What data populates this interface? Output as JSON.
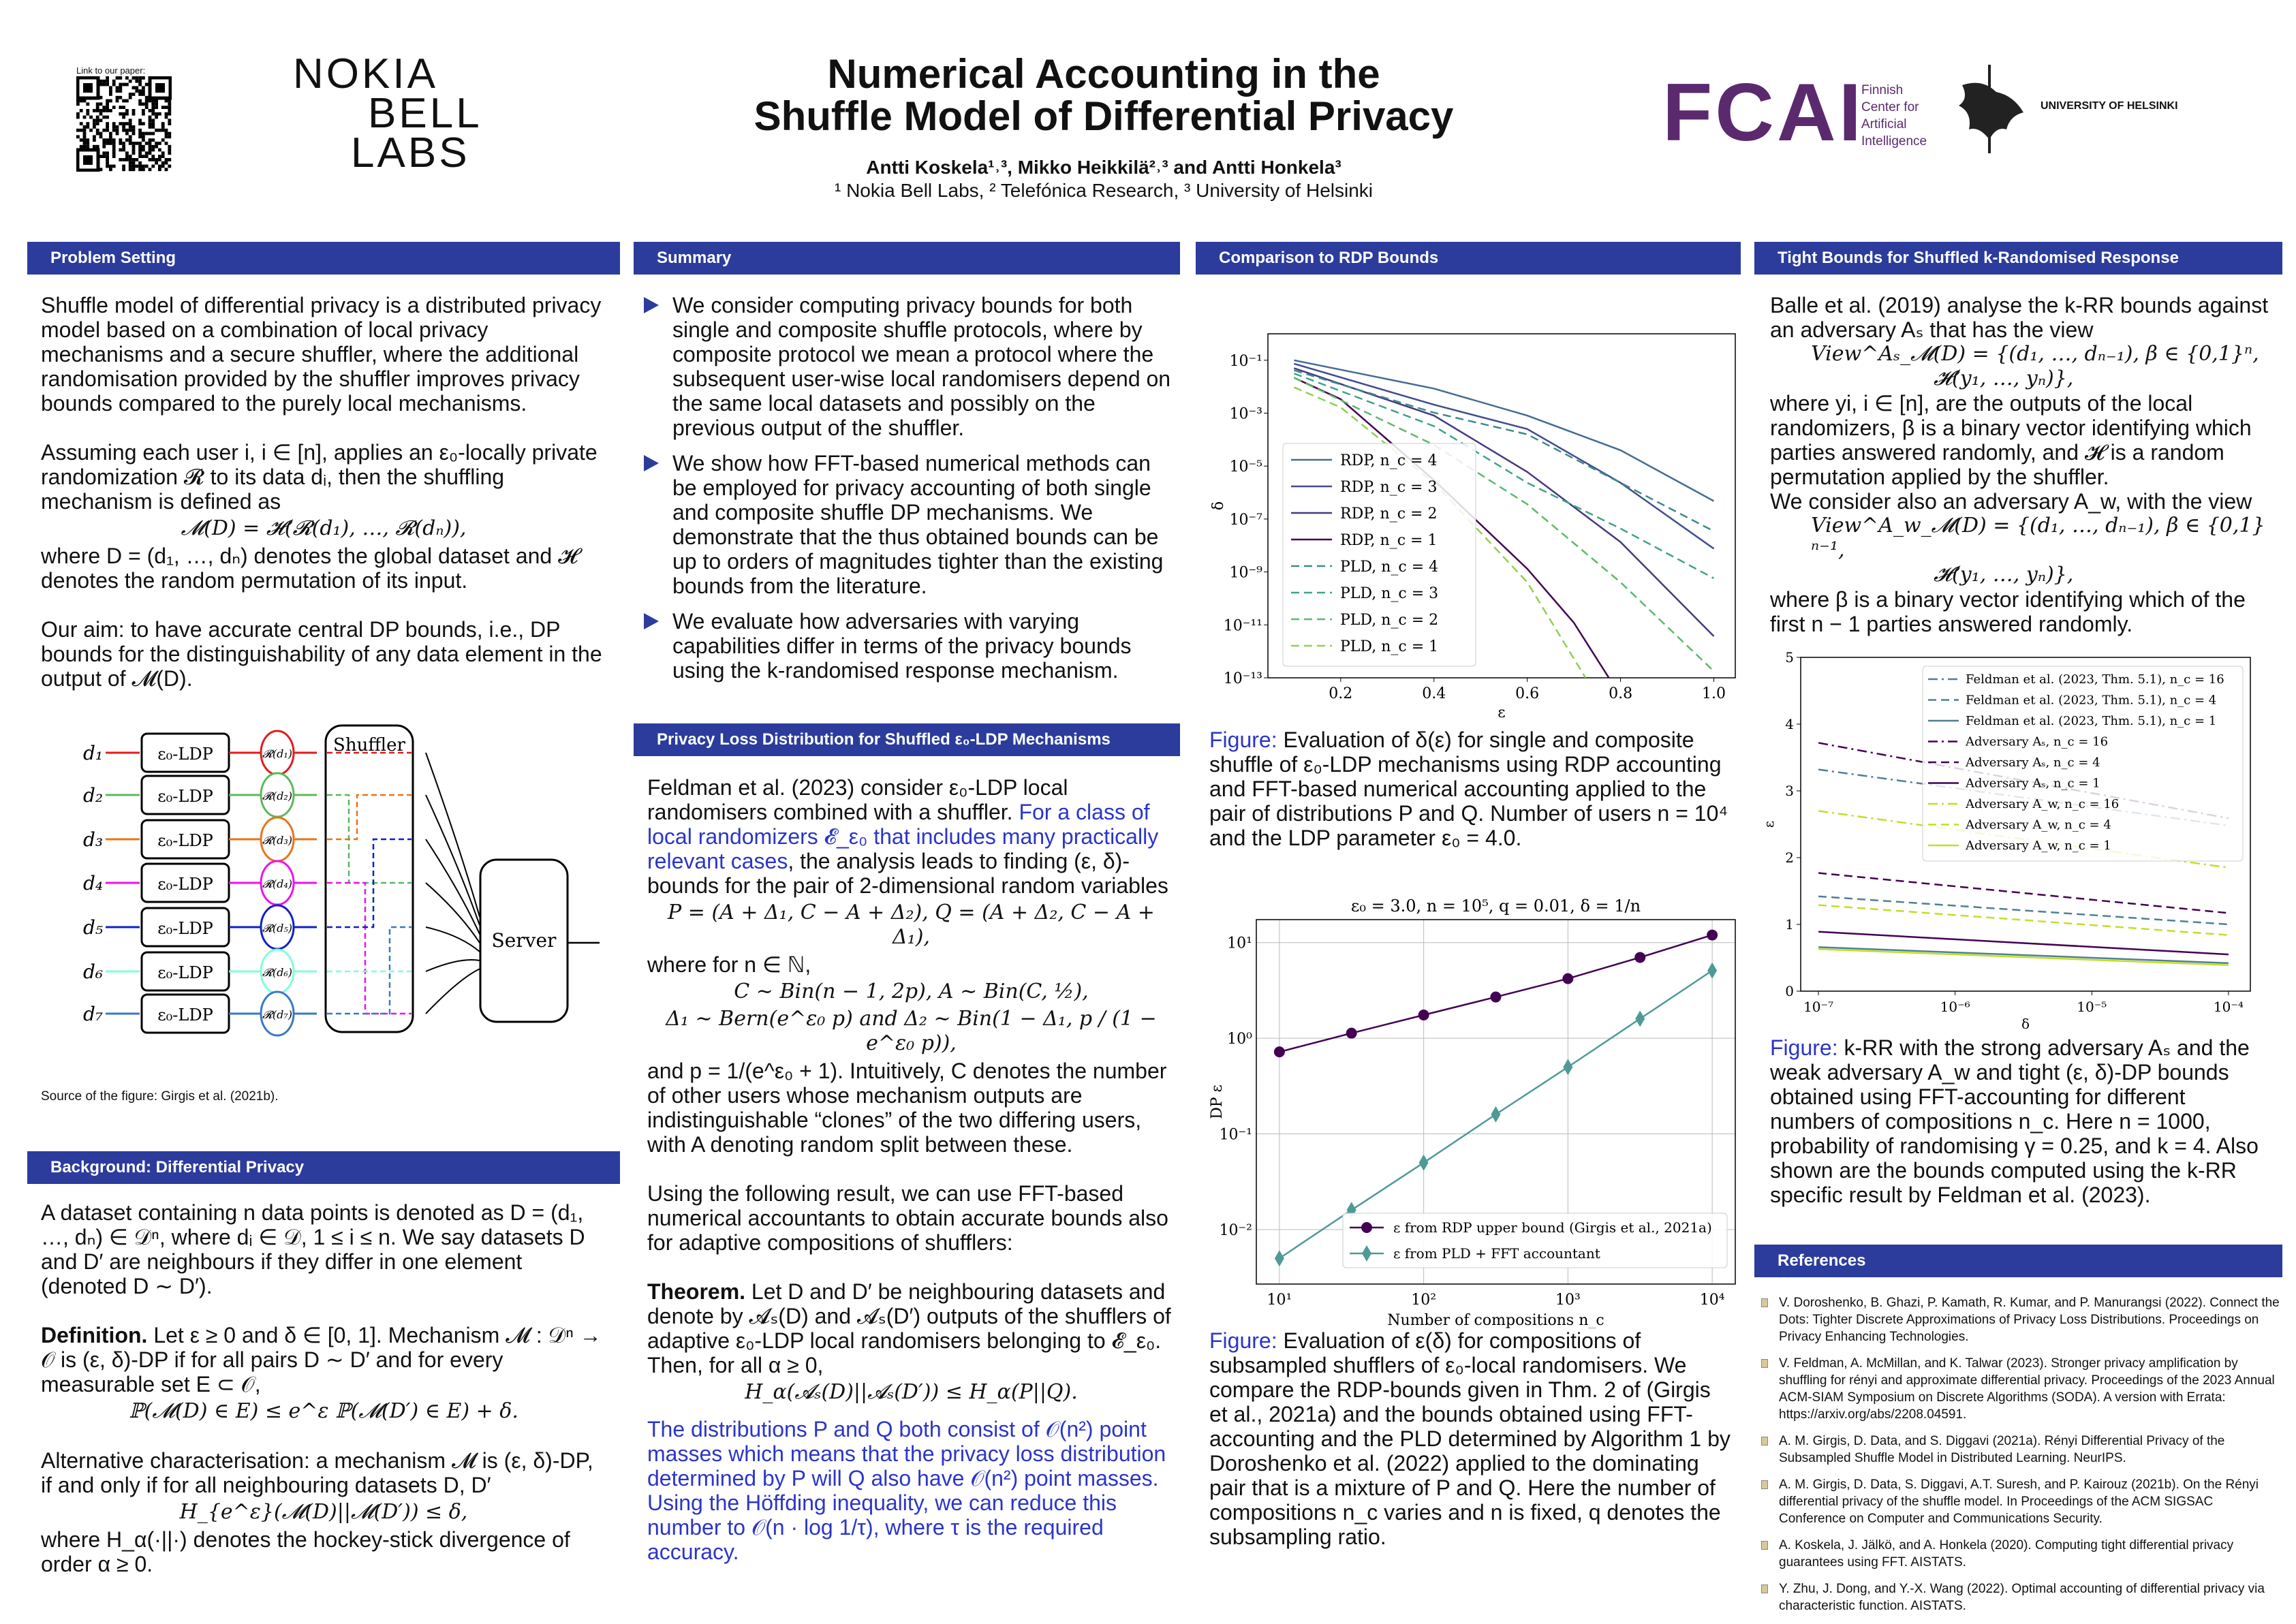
{
  "header": {
    "qr_label": "Link to our paper:",
    "nokia_logo": [
      "NOKIA",
      "BELL",
      "LABS"
    ],
    "title_lines": [
      "Numerical Accounting in the",
      "Shuffle Model of Differential Privacy"
    ],
    "authors": "Antti Koskela¹˒³, Mikko Heikkilä²˒³ and Antti Honkela³",
    "affiliations": "¹ Nokia Bell Labs, ² Telefónica Research, ³ University of Helsinki",
    "fcai_logo": "FCAI",
    "fcai_sub": [
      "Finnish",
      "Center for",
      "Artificial",
      "Intelligence"
    ],
    "uh_logo": "UNIVERSITY OF HELSINKI",
    "colors": {
      "header_bar": "#2c3c9c",
      "fcai": "#5b2a6e",
      "link_blue": "#2b35c8"
    }
  },
  "problem": {
    "heading": "Problem Setting",
    "p1": "Shuffle model of differential privacy is a distributed privacy model based on a combination of local privacy mechanisms and a secure shuffler, where the additional randomisation provided by the shuffler improves privacy bounds compared to the purely local mechanisms.",
    "p2": "Assuming each user i, i ∈ [n], applies an ε₀-locally private randomization 𝓡 to its data dᵢ, then the shuffling mechanism is defined as",
    "eq": "𝓜(D) = 𝓗(𝓡(d₁), …, 𝓡(dₙ)),",
    "p3": "where D = (d₁, …, dₙ) denotes the global dataset and 𝓗 denotes the random permutation of its input.",
    "p4": "Our aim: to have accurate central DP bounds, i.e., DP bounds for the distinguishability of any data element in the output of 𝓜(D).",
    "figure": {
      "shuffler": "Shuffler",
      "server": "Server",
      "box": "ε₀-LDP",
      "inputs": [
        "d₁",
        "d₂",
        "d₃",
        "d₄",
        "d₅",
        "d₆",
        "d₇"
      ],
      "outputs": [
        "𝓡(d₁)",
        "𝓡(d₂)",
        "𝓡(d₃)",
        "𝓡(d₄)",
        "𝓡(d₅)",
        "𝓡(d₆)",
        "𝓡(d₇)"
      ],
      "colors": [
        "#e41a1c",
        "#5cb85c",
        "#e8731a",
        "#ee11ee",
        "#1020c8",
        "#7fffd4",
        "#3a78c8"
      ]
    },
    "source": "Source of the figure: Girgis et al. (2021b)."
  },
  "background": {
    "heading": "Background: Differential Privacy",
    "p1": "A dataset containing n data points is denoted as D = (d₁, …, dₙ) ∈ 𝒟ⁿ, where dᵢ ∈ 𝒟, 1 ≤ i ≤ n. We say datasets D and D′ are neighbours if they differ in one element (denoted D ∼ D′).",
    "def_label": "Definition.",
    "def_text": " Let ε ≥ 0 and δ ∈ [0, 1]. Mechanism 𝓜 : 𝒟ⁿ → 𝒪 is (ε, δ)-DP if for all pairs D ∼ D′ and for every measurable set E ⊂ 𝒪,",
    "eq1": "ℙ(𝓜(D) ∈ E) ≤ e^ε ℙ(𝓜(D′) ∈ E) + δ.",
    "p2": "Alternative characterisation: a mechanism 𝓜 is (ε, δ)-DP, if and only if for all neighbouring datasets D, D′",
    "eq2": "H_{e^ε}(𝓜(D)||𝓜(D′)) ≤ δ,",
    "p3": "where H_α(·||·) denotes the hockey-stick divergence of order α ≥ 0."
  },
  "summary": {
    "heading": "Summary",
    "bullets": [
      "We consider computing privacy bounds for both single and composite shuffle protocols, where by composite protocol we mean a protocol where the subsequent user-wise local randomisers depend on the same local datasets and possibly on the previous output of the shuffler.",
      "We show how FFT-based numerical methods can be employed for privacy accounting of both single and composite shuffle DP mechanisms. We demonstrate that the thus obtained bounds can be up to orders of magnitudes tighter than the existing bounds from the literature.",
      "We evaluate how adversaries with varying capabilities differ in terms of the privacy bounds using the k-randomised response mechanism."
    ]
  },
  "pld": {
    "heading": "Privacy Loss Distribution for Shuffled ε₀-LDP Mechanisms",
    "p1a": "Feldman et al. (2023) consider ε₀-LDP local randomisers combined with a shuffler. ",
    "p1b": "For a class of local randomizers 𝓔_ε₀ that includes many practically relevant cases",
    "p1c": ", the analysis leads to finding (ε, δ)-bounds for the pair of 2-dimensional random variables",
    "eq1": "P = (A + Δ₁, C − A + Δ₂), Q = (A + Δ₂, C − A + Δ₁),",
    "p2": "where for n ∈ ℕ,",
    "eq2": "C ∼ Bin(n − 1, 2p),    A ∼ Bin(C, ½),",
    "eq3": "Δ₁ ∼ Bern(e^ε₀ p)   and   Δ₂ ∼ Bin(1 − Δ₁, p / (1 − e^ε₀ p)),",
    "p3": "and p = 1/(e^ε₀ + 1). Intuitively, C denotes the number of other users whose mechanism outputs are indistinguishable “clones” of the two differing users, with A denoting random split between these.",
    "p4": "Using the following result, we can use FFT-based numerical accountants to obtain accurate bounds also for adaptive compositions of shufflers:",
    "thm_label": "Theorem.",
    "thm_text": " Let D and D′ be neighbouring datasets and denote by 𝓐ₛ(D) and 𝓐ₛ(D′) outputs of the shufflers of adaptive ε₀-LDP local randomisers belonging to 𝓔_ε₀. Then, for all α ≥ 0,",
    "eq4": "H_α(𝓐ₛ(D)||𝓐ₛ(D′)) ≤ H_α(P||Q).",
    "p5": "The distributions P and Q both consist of 𝒪(n²) point masses which means that the privacy loss distribution determined by P will Q also have 𝒪(n²) point masses. Using the Höffding inequality, we can reduce this number to 𝒪(n · log 1/τ), where τ is the required accuracy."
  },
  "rdp": {
    "heading": "Comparison to RDP Bounds",
    "cap1_label": "Figure:",
    "cap1": " Evaluation of δ(ε) for single and composite shuffle of ε₀-LDP mechanisms using RDP accounting and FFT-based numerical accounting applied to the pair of distributions P and Q. Number of users n = 10⁴ and the LDP parameter ε₀ = 4.0.",
    "cap2_label": "Figure:",
    "cap2": " Evaluation of ε(δ) for compositions of subsampled shufflers of ε₀-local randomisers. We compare the RDP-bounds given in Thm. 2 of (Girgis et al., 2021a) and the bounds obtained using FFT-accounting and the PLD determined by Algorithm 1 by Doroshenko et al. (2022) applied to the dominating pair that is a mixture of P and Q. Here the number of compositions n_c varies and n is fixed, q denotes the subsampling ratio."
  },
  "krr": {
    "heading": "Tight Bounds for Shuffled k-Randomised Response",
    "p1": "Balle et al. (2019) analyse the k-RR bounds against an adversary Aₛ that has the view",
    "eq1a": "View^Aₛ_𝓜(D) = {(d₁, …, dₙ₋₁),   β ∈ {0,1}ⁿ,",
    "eq1b": "𝓗(y₁, …, yₙ)},",
    "p2": "where yi, i ∈ [n], are the outputs of the local randomizers, β is a binary vector identifying which parties answered randomly, and 𝓗 is a random permutation applied by the shuffler.",
    "p3": "We consider also an adversary A_w, with the view",
    "eq2a": "View^A_w_𝓜(D) = {(d₁, …, dₙ₋₁),   β ∈ {0,1}ⁿ⁻¹,",
    "eq2b": "𝓗(y₁, …, yₙ)},",
    "p4": "where β is a binary vector identifying which of the first n − 1 parties answered randomly.",
    "cap_label": "Figure:",
    "cap": " k-RR with the strong adversary Aₛ and the weak adversary A_w and tight (ε, δ)-DP bounds obtained using FFT-accounting for different numbers of compositions n_c. Here n = 1000, probability of randomising γ = 0.25, and k = 4. Also shown are the bounds computed using the k-RR specific result by Feldman et al. (2023)."
  },
  "references": {
    "heading": "References",
    "items": [
      "V. Doroshenko, B. Ghazi, P. Kamath, R. Kumar, and P. Manurangsi (2022). Connect the Dots: Tighter Discrete Approximations of Privacy Loss Distributions. Proceedings on Privacy Enhancing Technologies.",
      "V. Feldman, A. McMillan, and K. Talwar (2023). Stronger privacy amplification by shuffling for rényi and approximate differential privacy. Proceedings of the 2023 Annual ACM-SIAM Symposium on Discrete Algorithms (SODA). A version with Errata: https://arxiv.org/abs/2208.04591.",
      "A. M. Girgis, D. Data, and S. Diggavi (2021a). Rényi Differential Privacy of the Subsampled Shuffle Model in Distributed Learning. NeurIPS.",
      "A. M. Girgis, D. Data, S. Diggavi, A.T. Suresh, and P. Kairouz (2021b). On the Rényi differential privacy of the shuffle model. In Proceedings of the ACM SIGSAC Conference on Computer and Communications Security.",
      "A. Koskela, J. Jälkö, and A. Honkela (2020). Computing tight differential privacy guarantees using FFT. AISTATS.",
      "Y. Zhu, J. Dong, and Y.-X. Wang (2022). Optimal accounting of differential privacy via characteristic function. AISTATS."
    ]
  },
  "chart_data": [
    {
      "type": "line",
      "title": "",
      "xlabel": "ε",
      "ylabel": "δ",
      "yscale": "log",
      "xlim": [
        0.044,
        1.046
      ],
      "ylim_log10": [
        -13,
        0
      ],
      "xticks": [
        "0.2",
        "0.4",
        "0.6",
        "0.8",
        "1.0"
      ],
      "xtick_values": [
        0.2,
        0.4,
        0.6,
        0.8,
        1.0
      ],
      "yticks": [
        "10⁻¹",
        "10⁻³",
        "10⁻⁵",
        "10⁻⁷",
        "10⁻⁹",
        "10⁻¹¹",
        "10⁻¹³"
      ],
      "ytick_log10": [
        -1,
        -3,
        -5,
        -7,
        -9,
        -11,
        -13
      ],
      "legend": "center-left",
      "series": [
        {
          "name": "RDP, n_c = 4",
          "style": "solid",
          "color": "#466c93",
          "eps": [
            0.1,
            0.4,
            0.6,
            0.8,
            1.0
          ],
          "log10_delta": [
            -1.0,
            -2.07,
            -3.09,
            -4.4,
            -6.32
          ]
        },
        {
          "name": "RDP, n_c = 3",
          "style": "solid",
          "color": "#414d8f",
          "eps": [
            0.1,
            0.4,
            0.6,
            0.8,
            1.0
          ],
          "log10_delta": [
            -1.13,
            -2.68,
            -3.6,
            -5.63,
            -8.12
          ]
        },
        {
          "name": "RDP, n_c = 2",
          "style": "solid",
          "color": "#433b81",
          "eps": [
            0.1,
            0.4,
            0.6,
            0.8,
            1.0
          ],
          "log10_delta": [
            -1.3,
            -3.09,
            -5.22,
            -7.87,
            -11.43
          ]
        },
        {
          "name": "RDP, n_c = 1",
          "style": "solid",
          "color": "#440154",
          "eps": [
            0.1,
            0.2,
            0.4,
            0.6,
            0.7,
            0.775
          ],
          "log10_delta": [
            -1.66,
            -2.47,
            -5.53,
            -8.88,
            -10.92,
            -13
          ]
        },
        {
          "name": "PLD, n_c = 4",
          "style": "dashed",
          "color": "#3e8a8a",
          "eps": [
            0.1,
            0.4,
            0.6,
            0.8,
            1.0
          ],
          "log10_delta": [
            -1.38,
            -2.98,
            -3.8,
            -5.63,
            -7.46
          ]
        },
        {
          "name": "PLD, n_c = 3",
          "style": "dashed",
          "color": "#3fa38a",
          "eps": [
            0.1,
            0.4,
            0.6,
            0.8,
            1.0
          ],
          "log10_delta": [
            -1.5,
            -3.49,
            -5.63,
            -7.36,
            -9.24
          ]
        },
        {
          "name": "PLD, n_c = 2",
          "style": "dashed",
          "color": "#5cba6a",
          "eps": [
            0.1,
            0.4,
            0.6,
            0.8,
            1.0
          ],
          "log10_delta": [
            -1.66,
            -4.2,
            -6.44,
            -9.39,
            -12.75
          ]
        },
        {
          "name": "PLD, n_c = 1",
          "style": "dashed",
          "color": "#8fd14f",
          "eps": [
            0.1,
            0.2,
            0.4,
            0.6,
            0.725
          ],
          "log10_delta": [
            -2.02,
            -2.78,
            -5.63,
            -9.39,
            -13
          ]
        }
      ]
    },
    {
      "type": "line",
      "title": "ε₀ = 3.0, n = 10⁵, q = 0.01, δ = 1/n",
      "xlabel": "Number of compositions n_c",
      "ylabel": "DP ε",
      "xscale": "log",
      "yscale": "log",
      "xlim_log10": [
        0.84,
        4.16
      ],
      "ylim_log10": [
        -2.57,
        1.24
      ],
      "grid": true,
      "legend": "bottom-right",
      "xticks": [
        "10¹",
        "10²",
        "10³",
        "10⁴"
      ],
      "xtick_log10": [
        1,
        2,
        3,
        4
      ],
      "yticks": [
        "10¹",
        "10⁰",
        "10⁻¹",
        "10⁻²"
      ],
      "ytick_log10": [
        1,
        0,
        -1,
        -2
      ],
      "x": [
        10,
        31.6,
        100,
        316,
        1000,
        3162,
        10000
      ],
      "series": [
        {
          "name": "ε from RDP upper bound (Girgis et al., 2021a)",
          "marker": "circle",
          "color": "#440154",
          "values": [
            0.72,
            1.13,
            1.75,
            2.7,
            4.2,
            7.0,
            12
          ]
        },
        {
          "name": "ε from PLD + FFT accountant",
          "marker": "diamond",
          "color": "#4e9a96",
          "values": [
            0.005,
            0.016,
            0.05,
            0.16,
            0.5,
            1.6,
            5.1
          ]
        }
      ]
    },
    {
      "type": "line",
      "title": "",
      "xlabel": "δ",
      "ylabel": "ε",
      "xscale": "log",
      "xlim_log10": [
        -7.13,
        -3.84
      ],
      "ylim": [
        0,
        5
      ],
      "legend": "top-right",
      "xticks": [
        "10⁻⁷",
        "10⁻⁶",
        "10⁻⁵",
        "10⁻⁴"
      ],
      "xtick_log10": [
        -7,
        -6,
        -5,
        -4
      ],
      "yticks": [
        "0",
        "1",
        "2",
        "3",
        "4",
        "5"
      ],
      "ytick_values": [
        0,
        1,
        2,
        3,
        4,
        5
      ],
      "x_log10": [
        -7,
        -4
      ],
      "series": [
        {
          "name": "Feldman et al. (2023, Thm. 5.1), n_c = 16",
          "style": "dashdot",
          "color": "#4e8092",
          "values": [
            3.32,
            2.48
          ]
        },
        {
          "name": "Feldman et al. (2023, Thm. 5.1), n_c = 4",
          "style": "dashed",
          "color": "#4e8092",
          "values": [
            1.42,
            1.0
          ]
        },
        {
          "name": "Feldman et al. (2023, Thm. 5.1), n_c = 1",
          "style": "solid",
          "color": "#4e8092",
          "values": [
            0.66,
            0.42
          ]
        },
        {
          "name": "Adversary Aₛ, n_c = 16",
          "style": "dashdot",
          "color": "#440154",
          "values": [
            3.72,
            2.59
          ]
        },
        {
          "name": "Adversary Aₛ, n_c = 4",
          "style": "dashed",
          "color": "#440154",
          "values": [
            1.77,
            1.17
          ]
        },
        {
          "name": "Adversary Aₛ, n_c = 1",
          "style": "solid",
          "color": "#440154",
          "values": [
            0.89,
            0.55
          ]
        },
        {
          "name": "Adversary A_w, n_c = 16",
          "style": "dashdot",
          "color": "#c0df25",
          "values": [
            2.7,
            1.85
          ]
        },
        {
          "name": "Adversary A_w, n_c = 4",
          "style": "dashed",
          "color": "#c0df25",
          "values": [
            1.29,
            0.84
          ]
        },
        {
          "name": "Adversary A_w, n_c = 1",
          "style": "solid",
          "color": "#c0df25",
          "values": [
            0.63,
            0.39
          ]
        }
      ]
    }
  ]
}
